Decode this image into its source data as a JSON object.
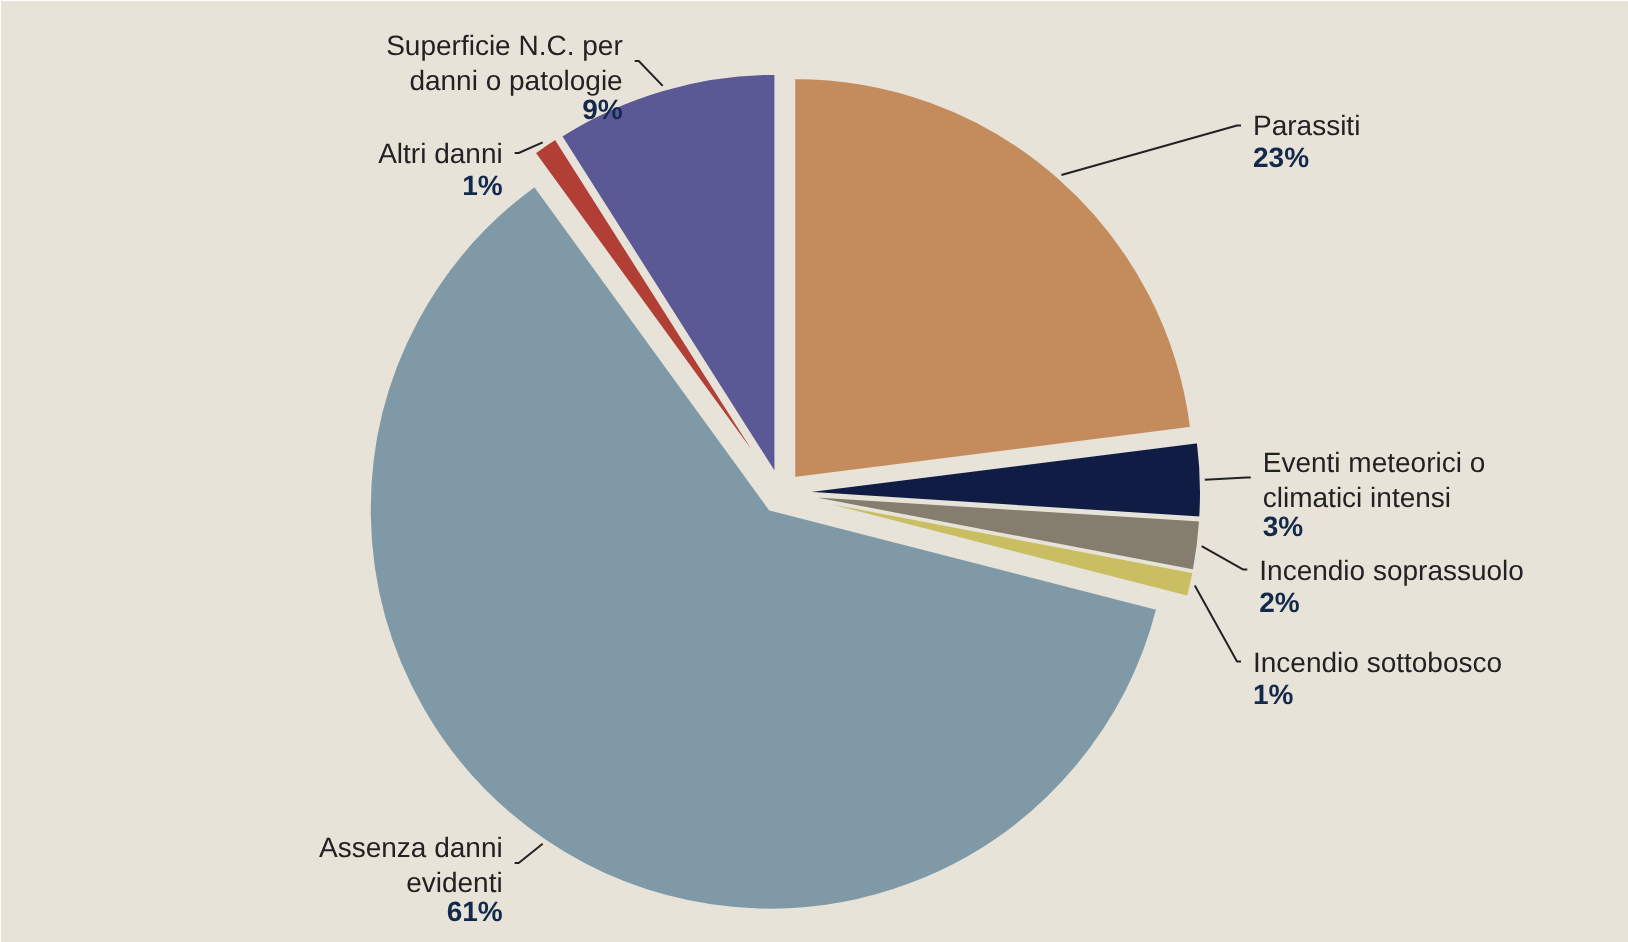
{
  "chart_data": {
    "type": "pie",
    "categories": [
      "Parassiti",
      "Eventi meteorici o climatici intensi",
      "Incendio soprassuolo",
      "Incendio sottobosco",
      "Assenza danni evidenti",
      "Altri danni",
      "Superficie N.C. per danni o patologie"
    ],
    "values": [
      23,
      3,
      2,
      1,
      61,
      1,
      9
    ],
    "value_labels": [
      "23%",
      "3%",
      "2%",
      "1%",
      "61%",
      "1%",
      "9%"
    ],
    "colors": [
      "#c48c5c",
      "#101c44",
      "#857d6e",
      "#c9bf62",
      "#7f99a7",
      "#b23f36",
      "#5b5896"
    ]
  }
}
